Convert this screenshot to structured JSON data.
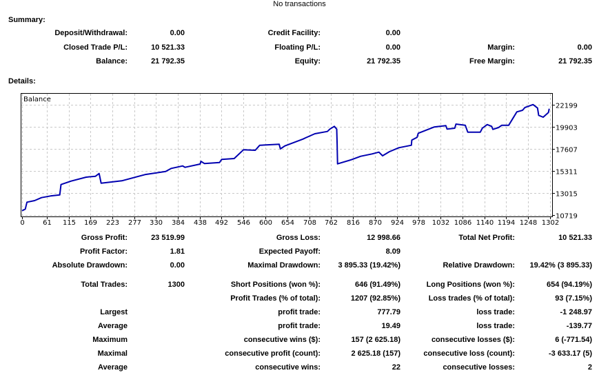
{
  "report": {
    "title": "No transactions"
  },
  "summary": {
    "heading": "Summary:",
    "rows": [
      [
        "Deposit/Withdrawal:",
        "0.00",
        "Credit Facility:",
        "0.00",
        "",
        ""
      ],
      [
        "Closed Trade P/L:",
        "10 521.33",
        "Floating P/L:",
        "0.00",
        "Margin:",
        "0.00"
      ],
      [
        "Balance:",
        "21 792.35",
        "Equity:",
        "21 792.35",
        "Free Margin:",
        "21 792.35"
      ]
    ]
  },
  "details": {
    "heading": "Details:",
    "rows": [
      [
        "Gross Profit:",
        "23 519.99",
        "Gross Loss:",
        "12 998.66",
        "Total Net Profit:",
        "10 521.33"
      ],
      [
        "Profit Factor:",
        "1.81",
        "Expected Payoff:",
        "8.09",
        "",
        ""
      ],
      [
        "Absolute Drawdown:",
        "0.00",
        "Maximal Drawdown:",
        "3 895.33 (19.42%)",
        "Relative Drawdown:",
        "19.42% (3 895.33)"
      ],
      [
        "Total Trades:",
        "1300",
        "Short Positions (won %):",
        "646 (91.49%)",
        "Long Positions (won %):",
        "654 (94.19%)"
      ],
      [
        "",
        "",
        "Profit Trades (% of total):",
        "1207 (92.85%)",
        "Loss trades (% of total):",
        "93 (7.15%)"
      ],
      [
        "Largest",
        "",
        "profit trade:",
        "777.79",
        "loss trade:",
        "-1 248.97"
      ],
      [
        "Average",
        "",
        "profit trade:",
        "19.49",
        "loss trade:",
        "-139.77"
      ],
      [
        "Maximum",
        "",
        "consecutive wins ($):",
        "157 (2 625.18)",
        "consecutive losses ($):",
        "6 (-771.54)"
      ],
      [
        "Maximal",
        "",
        "consecutive profit (count):",
        "2 625.18 (157)",
        "consecutive loss (count):",
        "-3 633.17 (5)"
      ],
      [
        "Average",
        "",
        "consecutive wins:",
        "22",
        "consecutive losses:",
        "2"
      ]
    ]
  },
  "chart_data": {
    "type": "line",
    "legend": "Balance",
    "line_color": "#0000b0",
    "grid": true,
    "xlim": [
      0,
      1302
    ],
    "ylim": [
      10719,
      22199
    ],
    "x_ticks": [
      0,
      61,
      115,
      169,
      223,
      277,
      330,
      384,
      438,
      492,
      546,
      600,
      654,
      708,
      762,
      816,
      870,
      924,
      978,
      1032,
      1086,
      1140,
      1194,
      1248,
      1302
    ],
    "y_ticks": [
      22199,
      19903,
      17607,
      15311,
      13015,
      10719
    ],
    "series": [
      {
        "name": "Balance",
        "points": [
          [
            0,
            11171
          ],
          [
            8,
            11343
          ],
          [
            12,
            12061
          ],
          [
            31,
            12226
          ],
          [
            48,
            12534
          ],
          [
            70,
            12706
          ],
          [
            93,
            12821
          ],
          [
            96,
            13898
          ],
          [
            121,
            14256
          ],
          [
            158,
            14665
          ],
          [
            181,
            14759
          ],
          [
            190,
            15046
          ],
          [
            195,
            14041
          ],
          [
            246,
            14285
          ],
          [
            303,
            14931
          ],
          [
            354,
            15261
          ],
          [
            368,
            15576
          ],
          [
            396,
            15835
          ],
          [
            402,
            15691
          ],
          [
            439,
            16029
          ],
          [
            441,
            16316
          ],
          [
            450,
            16079
          ],
          [
            487,
            16194
          ],
          [
            492,
            16509
          ],
          [
            523,
            16603
          ],
          [
            546,
            17514
          ],
          [
            575,
            17464
          ],
          [
            586,
            17988
          ],
          [
            634,
            18088
          ],
          [
            637,
            17607
          ],
          [
            648,
            17916
          ],
          [
            693,
            18633
          ],
          [
            699,
            18755
          ],
          [
            722,
            19185
          ],
          [
            753,
            19422
          ],
          [
            759,
            19666
          ],
          [
            770,
            19953
          ],
          [
            776,
            19666
          ],
          [
            777,
            18088
          ],
          [
            778,
            16050
          ],
          [
            812,
            16481
          ],
          [
            835,
            16839
          ],
          [
            863,
            17083
          ],
          [
            880,
            17270
          ],
          [
            889,
            16890
          ],
          [
            906,
            17320
          ],
          [
            929,
            17729
          ],
          [
            960,
            17988
          ],
          [
            961,
            18518
          ],
          [
            974,
            18805
          ],
          [
            977,
            19235
          ],
          [
            1016,
            19881
          ],
          [
            1045,
            20025
          ],
          [
            1048,
            19666
          ],
          [
            1067,
            19760
          ],
          [
            1070,
            20190
          ],
          [
            1093,
            20068
          ],
          [
            1099,
            19350
          ],
          [
            1130,
            19350
          ],
          [
            1135,
            19760
          ],
          [
            1147,
            20140
          ],
          [
            1158,
            19953
          ],
          [
            1161,
            19638
          ],
          [
            1175,
            19831
          ],
          [
            1183,
            20068
          ],
          [
            1200,
            20068
          ],
          [
            1220,
            21460
          ],
          [
            1234,
            21625
          ],
          [
            1240,
            21912
          ],
          [
            1260,
            22220
          ],
          [
            1271,
            21862
          ],
          [
            1274,
            21101
          ],
          [
            1285,
            20907
          ],
          [
            1298,
            21388
          ],
          [
            1300,
            21792
          ]
        ]
      }
    ]
  }
}
